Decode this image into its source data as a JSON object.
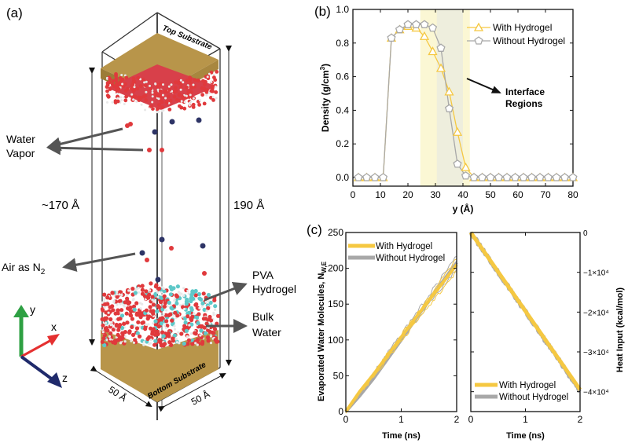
{
  "panel_labels": {
    "a": "(a)",
    "b": "(b)",
    "c": "(c)"
  },
  "panel_a": {
    "top_substrate": "Top Substrate",
    "bottom_substrate": "Bottom Substrate",
    "water_vapor": [
      "Water",
      "Vapor"
    ],
    "air": "Air as N",
    "air_sub": "2",
    "pva": [
      "PVA",
      "Hydrogel"
    ],
    "bulk": [
      "Bulk",
      "Water"
    ],
    "height_inner": "~170 Å",
    "height_outer": "190 Å",
    "width_left": "50 Å",
    "width_right": "50 Å",
    "axes": {
      "x": "x",
      "y": "y",
      "z": "z"
    },
    "colors": {
      "substrate": "#b8954a",
      "oxygen": "#e0393c",
      "hydrogen": "#e8e8e8",
      "nitrogen": "#2e3466",
      "hydrogel": "#5ec8c8",
      "axis_x": "#e53030",
      "axis_y": "#2ea043",
      "axis_z": "#1f2a6b"
    }
  },
  "chart_data": [
    {
      "id": "b",
      "type": "line",
      "title": "",
      "xlabel": "y (Å)",
      "ylabel": "Density (g/cm³)",
      "xlim": [
        0,
        80
      ],
      "ylim": [
        -0.05,
        1.0
      ],
      "xticks": [
        0,
        10,
        20,
        30,
        40,
        50,
        60,
        70,
        80
      ],
      "yticks": [
        "0.0",
        "0.2",
        "0.4",
        "0.6",
        "0.8",
        "1.0"
      ],
      "legend_position": "top-right",
      "annotation": [
        "Interface",
        "Regions"
      ],
      "interface_regions": [
        {
          "from": 24.5,
          "to": 42.5,
          "color": "#fbf7d4"
        },
        {
          "from": 30.5,
          "to": 40,
          "color": "#eeeedd"
        }
      ],
      "series": [
        {
          "name": "With Hydrogel",
          "color": "#f5c842",
          "marker": "triangle",
          "x": [
            2,
            5,
            8,
            11,
            14,
            17,
            20,
            23,
            26,
            29,
            32,
            35,
            38,
            41,
            44,
            47,
            50,
            53,
            56,
            59,
            62,
            65,
            68,
            71,
            74,
            77,
            80
          ],
          "y": [
            0,
            0,
            0,
            0,
            0.83,
            0.88,
            0.9,
            0.89,
            0.84,
            0.75,
            0.65,
            0.51,
            0.27,
            0.06,
            0,
            0,
            0,
            0,
            0,
            0,
            0,
            0,
            0,
            0,
            0,
            0,
            0
          ]
        },
        {
          "name": "Without Hydrogel",
          "color": "#a8a8a8",
          "marker": "pentagon",
          "x": [
            2,
            5,
            8,
            11,
            14,
            17,
            20,
            23,
            26,
            29,
            32,
            35,
            38,
            41,
            44,
            47,
            50,
            53,
            56,
            59,
            62,
            65,
            68,
            71,
            74,
            77,
            80
          ],
          "y": [
            0,
            0,
            0,
            0,
            0.83,
            0.88,
            0.91,
            0.91,
            0.91,
            0.89,
            0.77,
            0.41,
            0.08,
            0.01,
            0,
            0,
            0,
            0,
            0,
            0,
            0,
            0,
            0,
            0,
            0,
            0,
            0
          ]
        }
      ]
    },
    {
      "id": "c-left",
      "type": "line",
      "xlabel": "Time (ns)",
      "ylabel": "Evaporated Water Molecules, N",
      "ylabel_sub": "W,E",
      "xlim": [
        0,
        2
      ],
      "ylim": [
        0,
        250
      ],
      "xticks": [
        "0",
        "1",
        "2"
      ],
      "yticks": [
        "0",
        "50",
        "100",
        "150",
        "200",
        "250"
      ],
      "legend_position": "top-left",
      "series": [
        {
          "name": "With Hydrogel",
          "color": "#f5c842",
          "x": [
            0,
            0.25,
            0.5,
            0.75,
            1.0,
            1.25,
            1.5,
            1.75,
            2.0
          ],
          "y": [
            0,
            28,
            52,
            78,
            104,
            130,
            155,
            180,
            205
          ]
        },
        {
          "name": "Without Hydrogel",
          "color": "#a8a8a8",
          "x": [
            0,
            0.25,
            0.5,
            0.75,
            1.0,
            1.25,
            1.5,
            1.75,
            2.0
          ],
          "y": [
            0,
            22,
            46,
            73,
            100,
            128,
            155,
            182,
            208
          ]
        }
      ]
    },
    {
      "id": "c-right",
      "type": "line",
      "xlabel": "Time (ns)",
      "ylabel": "Heat Input (kcal/mol)",
      "xlim": [
        0,
        2
      ],
      "ylim": [
        -45000,
        0
      ],
      "xticks": [
        "0",
        "1",
        "2"
      ],
      "yticks": [
        "0",
        "−1×10⁴",
        "−2×10⁴",
        "−3×10⁴",
        "−4×10⁴"
      ],
      "legend_position": "bottom-left",
      "series": [
        {
          "name": "With Hydrogel",
          "color": "#f5c842",
          "x": [
            0,
            2
          ],
          "y": [
            0,
            -39500
          ]
        },
        {
          "name": "Without Hydrogel",
          "color": "#a8a8a8",
          "x": [
            0,
            2
          ],
          "y": [
            0,
            -39800
          ]
        }
      ]
    }
  ]
}
